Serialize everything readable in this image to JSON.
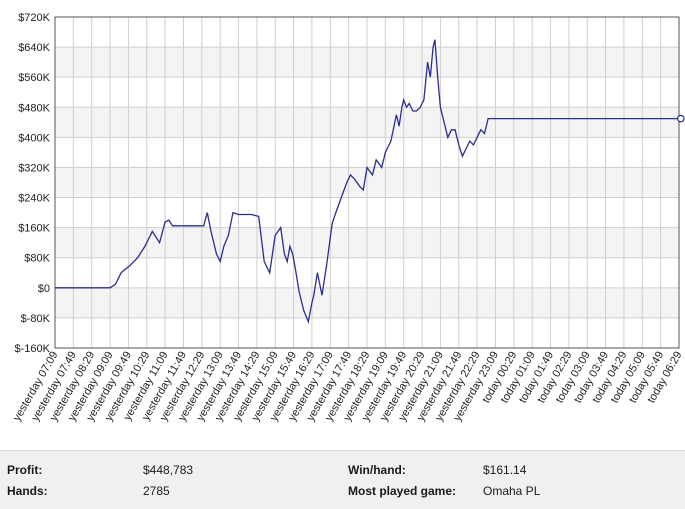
{
  "chart_data": {
    "type": "line",
    "y_ticks": [
      "$720K",
      "$640K",
      "$560K",
      "$480K",
      "$400K",
      "$320K",
      "$240K",
      "$160K",
      "$80K",
      "$0",
      "$-80K",
      "$-160K"
    ],
    "ylim": [
      -160000,
      720000
    ],
    "x_ticks": [
      "yesterday 07:09",
      "yesterday 07:49",
      "yesterday 08:29",
      "yesterday 09:09",
      "yesterday 09:49",
      "yesterday 10:29",
      "yesterday 11:09",
      "yesterday 11:49",
      "yesterday 12:29",
      "yesterday 13:09",
      "yesterday 13:49",
      "yesterday 14:29",
      "yesterday 15:09",
      "yesterday 15:49",
      "yesterday 16:29",
      "yesterday 17:09",
      "yesterday 17:49",
      "yesterday 18:29",
      "yesterday 19:09",
      "yesterday 19:49",
      "yesterday 20:29",
      "yesterday 21:09",
      "yesterday 21:49",
      "yesterday 22:29",
      "yesterday 23:09",
      "today 00:29",
      "today 01:09",
      "today 01:49",
      "today 02:29",
      "today 03:09",
      "today 03:49",
      "today 04:29",
      "today 05:09",
      "today 05:49",
      "today 06:29"
    ],
    "x": [
      0,
      1,
      2,
      3,
      3.3,
      3.6,
      4.1,
      4.5,
      4.9,
      5.3,
      5.7,
      6.0,
      6.2,
      6.4,
      6.7,
      7.0,
      7.5,
      8.1,
      8.3,
      8.5,
      8.8,
      9.0,
      9.2,
      9.45,
      9.7,
      10.0,
      10.3,
      10.7,
      11.1,
      11.4,
      11.7,
      12.0,
      12.3,
      12.5,
      12.65,
      12.8,
      12.95,
      13.1,
      13.3,
      13.55,
      13.8,
      14.0,
      14.1,
      14.3,
      14.55,
      14.8,
      15.1,
      15.3,
      15.6,
      15.9,
      16.1,
      16.3,
      16.6,
      16.8,
      17.0,
      17.3,
      17.5,
      17.8,
      18.0,
      18.3,
      18.6,
      18.75,
      18.9,
      19.0,
      19.15,
      19.3,
      19.5,
      19.7,
      19.9,
      20.1,
      20.3,
      20.45,
      20.6,
      20.7,
      20.85,
      21.0,
      21.2,
      21.4,
      21.6,
      21.8,
      22.0,
      22.2,
      22.4,
      22.6,
      22.8,
      23.0,
      23.2,
      23.4,
      23.6,
      24.0,
      25,
      26,
      27,
      28,
      29,
      30,
      31,
      32,
      33,
      34.1
    ],
    "series": [
      {
        "values": [
          0,
          0,
          0,
          0,
          10000,
          40000,
          60000,
          80000,
          110000,
          150000,
          120000,
          175000,
          180000,
          165000,
          165000,
          165000,
          165000,
          165000,
          200000,
          150000,
          90000,
          70000,
          110000,
          140000,
          200000,
          195000,
          195000,
          195000,
          190000,
          70000,
          40000,
          140000,
          160000,
          90000,
          70000,
          110000,
          90000,
          50000,
          -10000,
          -60000,
          -90000,
          -40000,
          -20000,
          40000,
          -20000,
          60000,
          170000,
          200000,
          240000,
          280000,
          300000,
          290000,
          270000,
          260000,
          320000,
          300000,
          340000,
          320000,
          360000,
          390000,
          460000,
          430000,
          480000,
          500000,
          480000,
          490000,
          470000,
          470000,
          480000,
          500000,
          600000,
          560000,
          640000,
          660000,
          560000,
          480000,
          440000,
          400000,
          420000,
          420000,
          380000,
          350000,
          370000,
          390000,
          380000,
          400000,
          420000,
          410000,
          450000,
          450000,
          450000,
          450000,
          450000,
          450000,
          450000,
          450000,
          450000,
          450000,
          450000,
          450000
        ]
      }
    ],
    "line_color": "#2b2d8e",
    "grid": true
  },
  "stats": {
    "profit_label": "Profit:",
    "profit_value": "$448,783",
    "hands_label": "Hands:",
    "hands_value": "2785",
    "winhand_label": "Win/hand:",
    "winhand_value": "$161.14",
    "game_label": "Most played game:",
    "game_value": "Omaha PL"
  }
}
